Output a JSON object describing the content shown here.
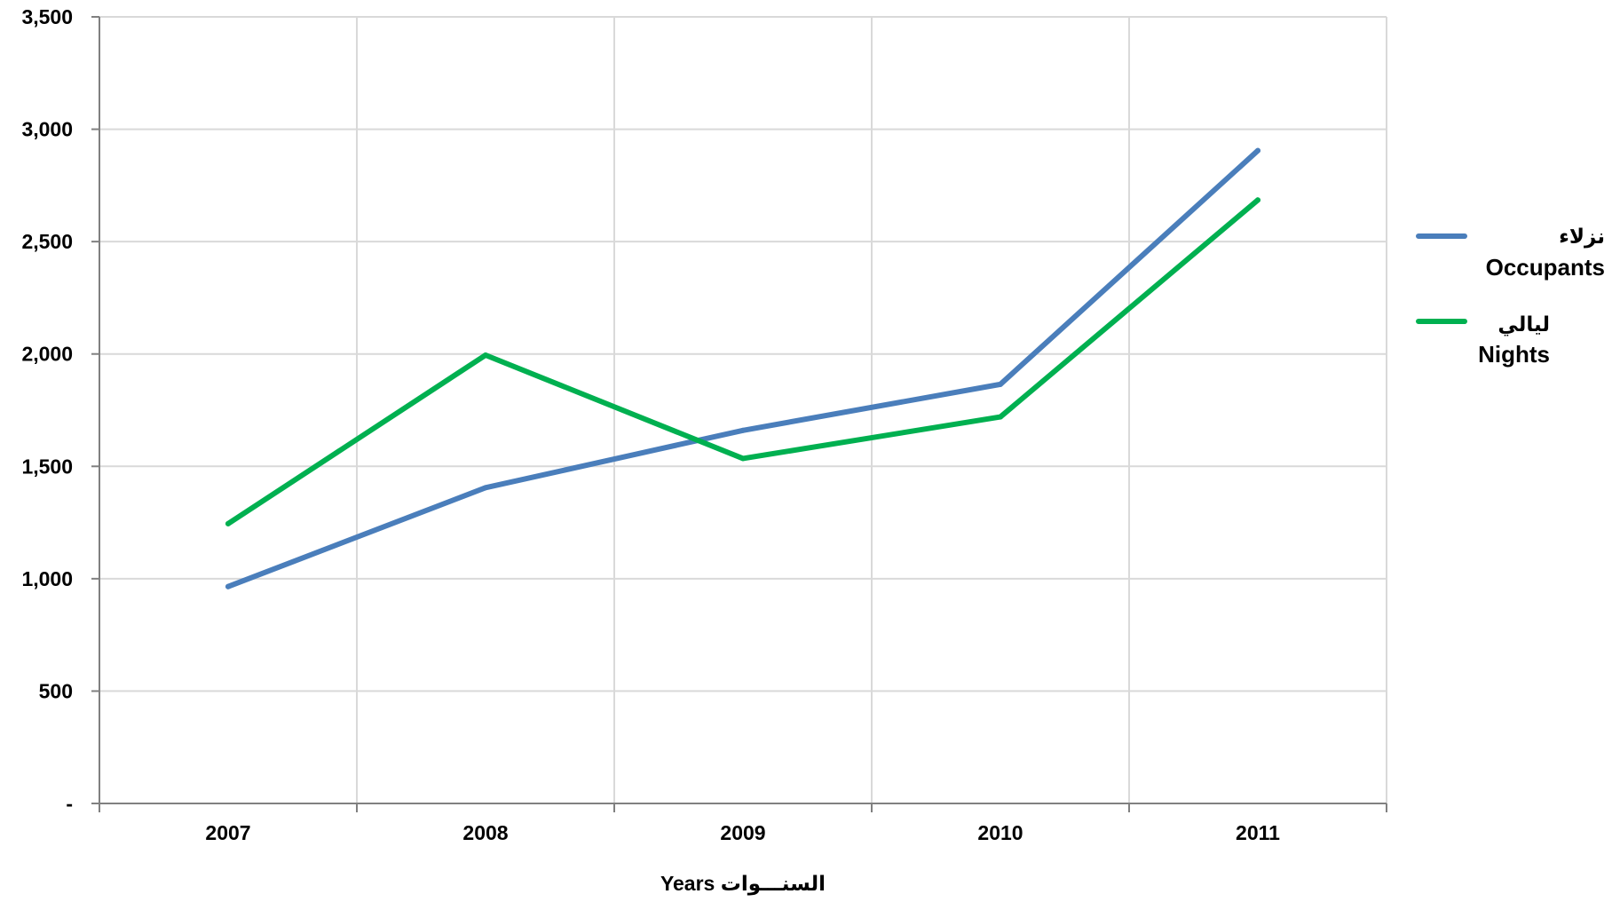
{
  "chart_data": {
    "type": "line",
    "title": "",
    "xlabel": "Years  السنـــوات",
    "ylabel": "",
    "categories": [
      "2007",
      "2008",
      "2009",
      "2010",
      "2011"
    ],
    "ylim": [
      0,
      3500
    ],
    "yticks": [
      0,
      500,
      1000,
      1500,
      2000,
      2500,
      3000,
      3500
    ],
    "ytick_labels": [
      "-",
      "500",
      "1,000",
      "1,500",
      "2,000",
      "2,500",
      "3,000",
      "3,500"
    ],
    "grid": true,
    "legend_position": "right",
    "series": [
      {
        "name": "نزلاء Occupants",
        "name_ar": "نزلاء",
        "name_en": "Occupants",
        "color": "#4a7ebb",
        "values": [
          965,
          1405,
          1660,
          1865,
          2905
        ]
      },
      {
        "name": "ليالي Nights",
        "name_ar": "ليالي",
        "name_en": "Nights",
        "color": "#00b050",
        "values": [
          1245,
          1995,
          1535,
          1720,
          2685
        ]
      }
    ]
  }
}
